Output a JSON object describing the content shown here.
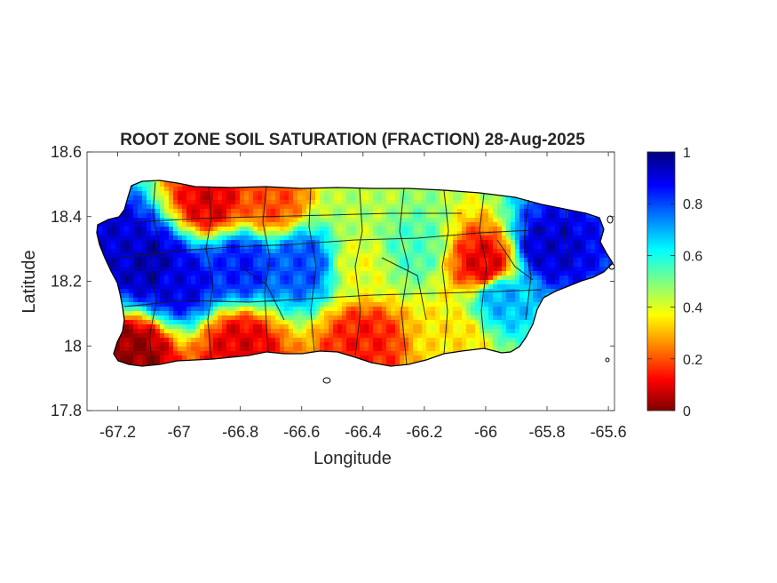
{
  "chart_data": {
    "type": "heatmap",
    "title": "ROOT ZONE SOIL SATURATION (FRACTION) 28-Aug-2025",
    "xlabel": "Longitude",
    "ylabel": "Latitude",
    "xlim": [
      -67.3,
      -65.58
    ],
    "ylim": [
      17.8,
      18.6
    ],
    "x_ticks": [
      -67.2,
      -67,
      -66.8,
      -66.6,
      -66.4,
      -66.2,
      -66,
      -65.8,
      -65.6
    ],
    "x_tick_labels": [
      "-67.2",
      "-67",
      "-66.8",
      "-66.6",
      "-66.4",
      "-66.2",
      "-66",
      "-65.8",
      "-65.6"
    ],
    "y_ticks": [
      17.8,
      18,
      18.2,
      18.4,
      18.6
    ],
    "y_tick_labels": [
      "17.8",
      "18",
      "18.2",
      "18.4",
      "18.6"
    ],
    "colorbar": {
      "range": [
        0,
        1
      ],
      "ticks": [
        0,
        0.2,
        0.4,
        0.6,
        0.8,
        1
      ],
      "tick_labels": [
        "0",
        "0.2",
        "0.4",
        "0.6",
        "0.8",
        "1"
      ],
      "colormap": "jet-reversed"
    },
    "region": "Puerto Rico",
    "grid": false,
    "field_samples": [
      {
        "lon": -67.2,
        "lat": 18.3,
        "value": 0.92
      },
      {
        "lon": -67.1,
        "lat": 18.25,
        "value": 0.95
      },
      {
        "lon": -67.0,
        "lat": 18.2,
        "value": 0.9
      },
      {
        "lon": -66.8,
        "lat": 18.25,
        "value": 0.85
      },
      {
        "lon": -66.6,
        "lat": 18.25,
        "value": 0.8
      },
      {
        "lon": -66.9,
        "lat": 18.45,
        "value": 0.1
      },
      {
        "lon": -66.7,
        "lat": 18.45,
        "value": 0.2
      },
      {
        "lon": -66.4,
        "lat": 18.45,
        "value": 0.45
      },
      {
        "lon": -66.4,
        "lat": 18.25,
        "value": 0.4
      },
      {
        "lon": -66.25,
        "lat": 18.3,
        "value": 0.55
      },
      {
        "lon": -66.0,
        "lat": 18.25,
        "value": 0.1
      },
      {
        "lon": -65.95,
        "lat": 18.15,
        "value": 0.7
      },
      {
        "lon": -65.8,
        "lat": 18.3,
        "value": 0.92
      },
      {
        "lon": -66.1,
        "lat": 18.02,
        "value": 0.35
      },
      {
        "lon": -66.4,
        "lat": 18.02,
        "value": 0.15
      },
      {
        "lon": -66.8,
        "lat": 18.0,
        "value": 0.1
      },
      {
        "lon": -67.15,
        "lat": 17.98,
        "value": 0.02
      }
    ]
  }
}
